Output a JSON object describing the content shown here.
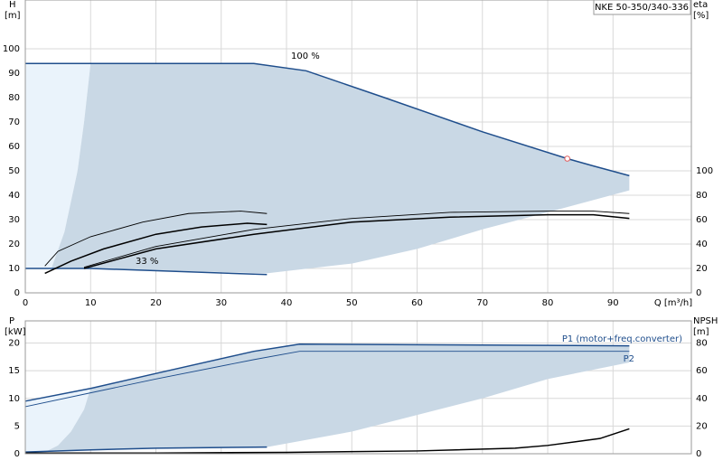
{
  "chart_data": [
    {
      "type": "line",
      "title": "NKE 50-350/340-336",
      "ylabel": "H",
      "yunit": "[m]",
      "y2label": "eta",
      "y2unit": "[%]",
      "xlabel": "Q [m³/h]",
      "xlim": [
        0,
        102
      ],
      "ylim": [
        0,
        120
      ],
      "y2lim": [
        0,
        240
      ],
      "xticks": [
        0,
        10,
        20,
        30,
        40,
        50,
        60,
        70,
        80,
        90
      ],
      "yticks": [
        0,
        10,
        20,
        30,
        40,
        50,
        60,
        70,
        80,
        90,
        100
      ],
      "y2ticks": [
        0,
        20,
        40,
        60,
        80,
        100
      ],
      "grid": true,
      "annotations": [
        "100 %",
        "33 %"
      ],
      "duty_point": {
        "x": 83,
        "y": 55,
        "color": "#e06060"
      },
      "series": [
        {
          "style": "area",
          "color": "#eaf3fb",
          "x": [
            0,
            10,
            9,
            8,
            6,
            4,
            0
          ],
          "values": [
            94,
            94,
            70,
            50,
            25,
            10,
            10
          ]
        },
        {
          "style": "area",
          "color": "#c9d8e5",
          "x": [
            10,
            35,
            43,
            55,
            70,
            83,
            87,
            92.5,
            92.5,
            80,
            70,
            60,
            50,
            37,
            10,
            4,
            6,
            8,
            9
          ],
          "values": [
            94,
            94,
            91,
            80,
            66,
            55,
            52,
            48,
            42,
            33,
            26,
            18,
            12,
            8,
            10,
            10,
            25,
            50,
            70
          ]
        },
        {
          "style": "line",
          "color": "#1f4e8c",
          "x": [
            0,
            35,
            43,
            55,
            70,
            83,
            87,
            92.5
          ],
          "values": [
            94,
            94,
            91,
            80,
            66,
            55,
            52,
            48
          ]
        },
        {
          "style": "line",
          "color": "#1f4e8c",
          "x": [
            0,
            10,
            37
          ],
          "values": [
            10,
            10,
            7.5
          ]
        },
        {
          "style": "line",
          "color": "#000000",
          "axis": "y2",
          "x": [
            3,
            7,
            12,
            20,
            27,
            34,
            37
          ],
          "values": [
            16,
            26,
            36,
            48,
            54,
            57,
            56
          ]
        },
        {
          "style": "thin",
          "color": "#000000",
          "axis": "y2",
          "x": [
            3,
            5,
            10,
            18,
            25,
            33,
            37
          ],
          "values": [
            22,
            34,
            46,
            58,
            65,
            67,
            65
          ]
        },
        {
          "style": "line",
          "color": "#000000",
          "axis": "y2",
          "x": [
            9,
            20,
            35,
            50,
            65,
            80,
            87,
            92.5
          ],
          "values": [
            20,
            36,
            48,
            58,
            62,
            64,
            64,
            61
          ]
        },
        {
          "style": "thin",
          "color": "#000000",
          "axis": "y2",
          "x": [
            9,
            20,
            35,
            50,
            65,
            80,
            87,
            92.5
          ],
          "values": [
            21,
            38,
            52,
            61,
            66,
            67,
            67,
            65
          ]
        }
      ]
    },
    {
      "type": "line",
      "ylabel": "P",
      "yunit": "[kW]",
      "y2label": "NPSH",
      "y2unit": "[m]",
      "xlim": [
        0,
        102
      ],
      "ylim": [
        0,
        24
      ],
      "y2lim": [
        0,
        96
      ],
      "xticks": [
        0,
        10,
        20,
        30,
        40,
        50,
        60,
        70,
        80,
        90
      ],
      "yticks": [
        0,
        5,
        10,
        15,
        20
      ],
      "y2ticks": [
        0,
        20,
        40,
        60,
        80
      ],
      "grid": true,
      "annotations": [
        "P1 (motor+freq.converter)",
        "P2"
      ],
      "series": [
        {
          "style": "area",
          "color": "#eaf3fb",
          "x": [
            0,
            10,
            9,
            7,
            5,
            3,
            0
          ],
          "values": [
            9.5,
            11.8,
            8,
            4,
            1.5,
            0.3,
            0.3
          ]
        },
        {
          "style": "area",
          "color": "#c9d8e5",
          "x": [
            10,
            20,
            35,
            42,
            92.5,
            92.5,
            80,
            70,
            60,
            50,
            37,
            10,
            3,
            5,
            7,
            9
          ],
          "values": [
            11.8,
            14.5,
            18.5,
            19.8,
            19.5,
            16.5,
            13.5,
            10,
            7,
            4,
            1.2,
            0.8,
            0.3,
            1.5,
            4,
            8
          ]
        },
        {
          "style": "line",
          "color": "#1f4e8c",
          "x": [
            0,
            10,
            20,
            35,
            42,
            92.5
          ],
          "values": [
            9.5,
            11.8,
            14.5,
            18.5,
            19.8,
            19.5
          ]
        },
        {
          "style": "thin",
          "color": "#1f4e8c",
          "x": [
            0,
            10,
            20,
            35,
            42,
            92.5
          ],
          "values": [
            8.5,
            11,
            13.5,
            17,
            18.5,
            18.5
          ]
        },
        {
          "style": "line",
          "color": "#1f4e8c",
          "x": [
            0,
            10,
            20,
            37
          ],
          "values": [
            0.3,
            0.7,
            1,
            1.2
          ]
        },
        {
          "style": "line",
          "color": "#000000",
          "axis": "y2",
          "x": [
            0,
            20,
            40,
            60,
            75,
            80,
            88,
            92.5
          ],
          "values": [
            0.5,
            0.5,
            1,
            2,
            4,
            6,
            11,
            18
          ]
        }
      ]
    }
  ]
}
